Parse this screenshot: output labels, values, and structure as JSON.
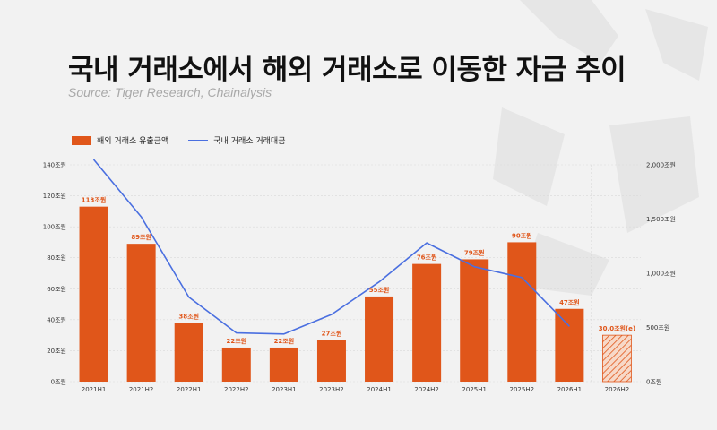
{
  "title": "국내 거래소에서 해외 거래소로 이동한 자금 추이",
  "subtitle": "Source: Tiger Research, Chainalysis",
  "legend": {
    "bar": "해외 거래소 유출금액",
    "line": "국내 거래소 거래대금"
  },
  "colors": {
    "bar": "#e0561a",
    "line": "#4a6fe0",
    "estimate_hatch": "#e0561a"
  },
  "chart_data": {
    "type": "bar",
    "categories": [
      "2021H1",
      "2021H2",
      "2022H1",
      "2022H2",
      "2023H1",
      "2023H2",
      "2024H1",
      "2024H2",
      "2025H1",
      "2025H2",
      "2026H1",
      "2026H2"
    ],
    "series": [
      {
        "name": "해외 거래소 유출금액",
        "type": "bar",
        "axis": "left",
        "values": [
          113,
          89,
          38,
          22,
          22,
          27,
          55,
          76,
          79,
          90,
          47,
          30
        ],
        "labels": [
          "113조원",
          "89조원",
          "38조원",
          "22조원",
          "22조원",
          "27조원",
          "55조원",
          "76조원",
          "79조원",
          "90조원",
          "47조원",
          "30.0조원(e)"
        ],
        "estimated_index": 11
      },
      {
        "name": "국내 거래소 거래대금",
        "type": "line",
        "axis": "right",
        "values": [
          2050,
          1520,
          780,
          450,
          440,
          620,
          920,
          1280,
          1060,
          960,
          510,
          null
        ]
      }
    ],
    "left_axis": {
      "ticks": [
        "0조원",
        "20조원",
        "40조원",
        "60조원",
        "80조원",
        "100조원",
        "120조원",
        "140조원"
      ],
      "ylim": [
        0,
        140
      ]
    },
    "right_axis": {
      "ticks": [
        "0조원",
        "500조원",
        "1,000조원",
        "1,500조원",
        "2,000조원"
      ],
      "ylim": [
        0,
        2000
      ]
    },
    "grid": true,
    "legend_position": "top-left"
  }
}
